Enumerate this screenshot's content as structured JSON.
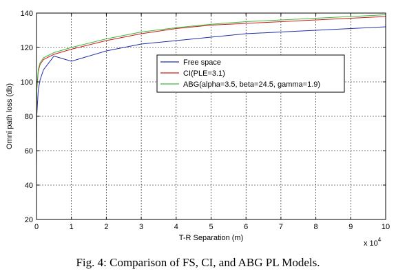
{
  "chart_data": {
    "type": "line",
    "title": "",
    "xlabel": "T-R Separation (m)",
    "ylabel": "Omni path loss (db)",
    "x_multiplier_label": "x 10",
    "x_multiplier_exp": "4",
    "xlim": [
      0,
      100000
    ],
    "ylim": [
      20,
      140
    ],
    "x_tick_labels": [
      "0",
      "1",
      "2",
      "3",
      "4",
      "5",
      "6",
      "7",
      "8",
      "9",
      "10"
    ],
    "y_tick_labels": [
      "20",
      "40",
      "60",
      "80",
      "100",
      "120",
      "140"
    ],
    "grid": true,
    "grid_style": "dashed",
    "legend_position": "upper-center",
    "x": [
      1,
      50,
      100,
      500,
      1000,
      2000,
      5000,
      10000,
      20000,
      30000,
      40000,
      50000,
      60000,
      70000,
      80000,
      90000,
      100000
    ],
    "series": [
      {
        "name": "Free space",
        "color": "#1f2ea8",
        "values": [
          52,
          75,
          81,
          95,
          101,
          107,
          115,
          112,
          118,
          122,
          124,
          126,
          128,
          129,
          130,
          131,
          132
        ]
      },
      {
        "name": "CI(PLE=3.1)",
        "color": "#d01818",
        "values": [
          52,
          86,
          96,
          106,
          110,
          113,
          116,
          119,
          124,
          128,
          131,
          133,
          134,
          135,
          136,
          137,
          138
        ]
      },
      {
        "name": "ABG(alpha=3.5, beta=24.5, gamma=1.9)",
        "color": "#3cb83c",
        "values": [
          49,
          87,
          97,
          107,
          111,
          114,
          117,
          120,
          125,
          129,
          131.5,
          133.5,
          135,
          136,
          137,
          138,
          139
        ]
      }
    ]
  },
  "caption": "Fig. 4:  Comparison of FS, CI, and ABG PL Models."
}
